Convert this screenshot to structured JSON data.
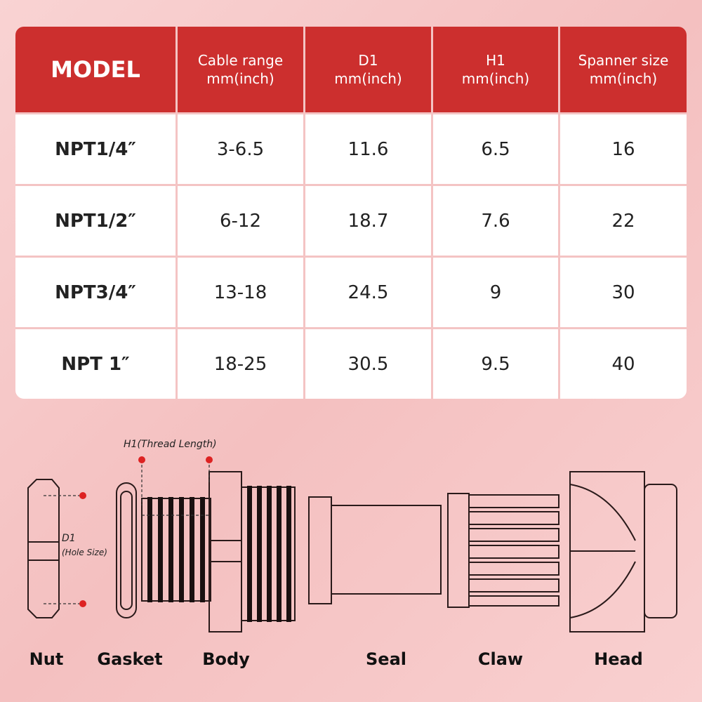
{
  "table": {
    "header": [
      "MODEL",
      "Cable range\nmm(inch)",
      "D1\nmm(inch)",
      "H1\nmm(inch)",
      "Spanner size\nmm(inch)"
    ],
    "rows": [
      [
        "NPT1/4″",
        "3-6.5",
        "11.6",
        "6.5",
        "16"
      ],
      [
        "NPT1/2″",
        "6-12",
        "18.7",
        "7.6",
        "22"
      ],
      [
        "NPT3/4″",
        "13-18",
        "24.5",
        "9",
        "30"
      ],
      [
        "NPT 1″",
        "18-25",
        "30.5",
        "9.5",
        "40"
      ]
    ]
  },
  "diagram": {
    "h1_label": "H1(Thread Length)",
    "d1_label": "D1",
    "d1_note": "(Hole Size)",
    "parts": [
      "Nut",
      "Gasket",
      "Body",
      "Seal",
      "Claw",
      "Head"
    ]
  }
}
